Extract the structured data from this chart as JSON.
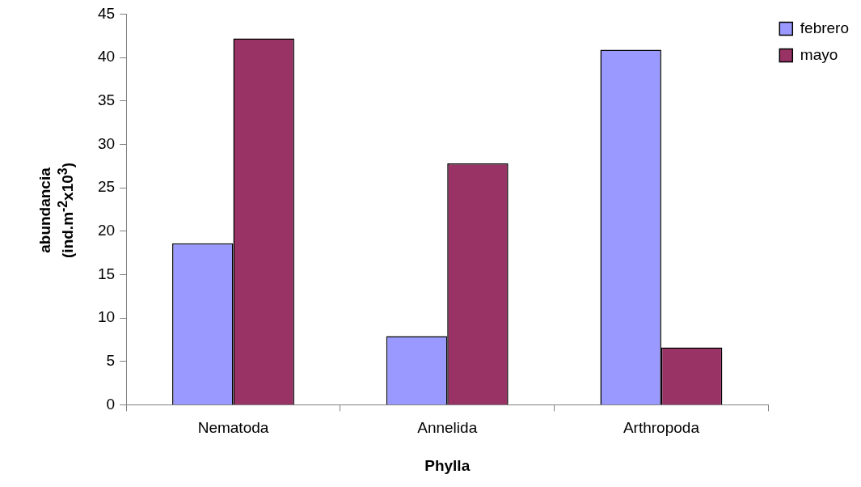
{
  "chart_data": {
    "type": "bar",
    "xlabel": "Phylla",
    "ylabel": "abundancia\n(ind.m$^{-2}$x10$^{3}$)",
    "categories": [
      "Nematoda",
      "Annelida",
      "Arthropoda"
    ],
    "series": [
      {
        "name": "febrero",
        "color": "#9999ff",
        "values": [
          18.6,
          7.9,
          40.9
        ]
      },
      {
        "name": "mayo",
        "color": "#993366",
        "values": [
          42.2,
          27.8,
          6.6
        ]
      }
    ],
    "ylim": [
      0,
      45
    ],
    "yticks": [
      0,
      5,
      10,
      15,
      20,
      25,
      30,
      35,
      40,
      45
    ],
    "grid": false,
    "legend": "top right"
  }
}
